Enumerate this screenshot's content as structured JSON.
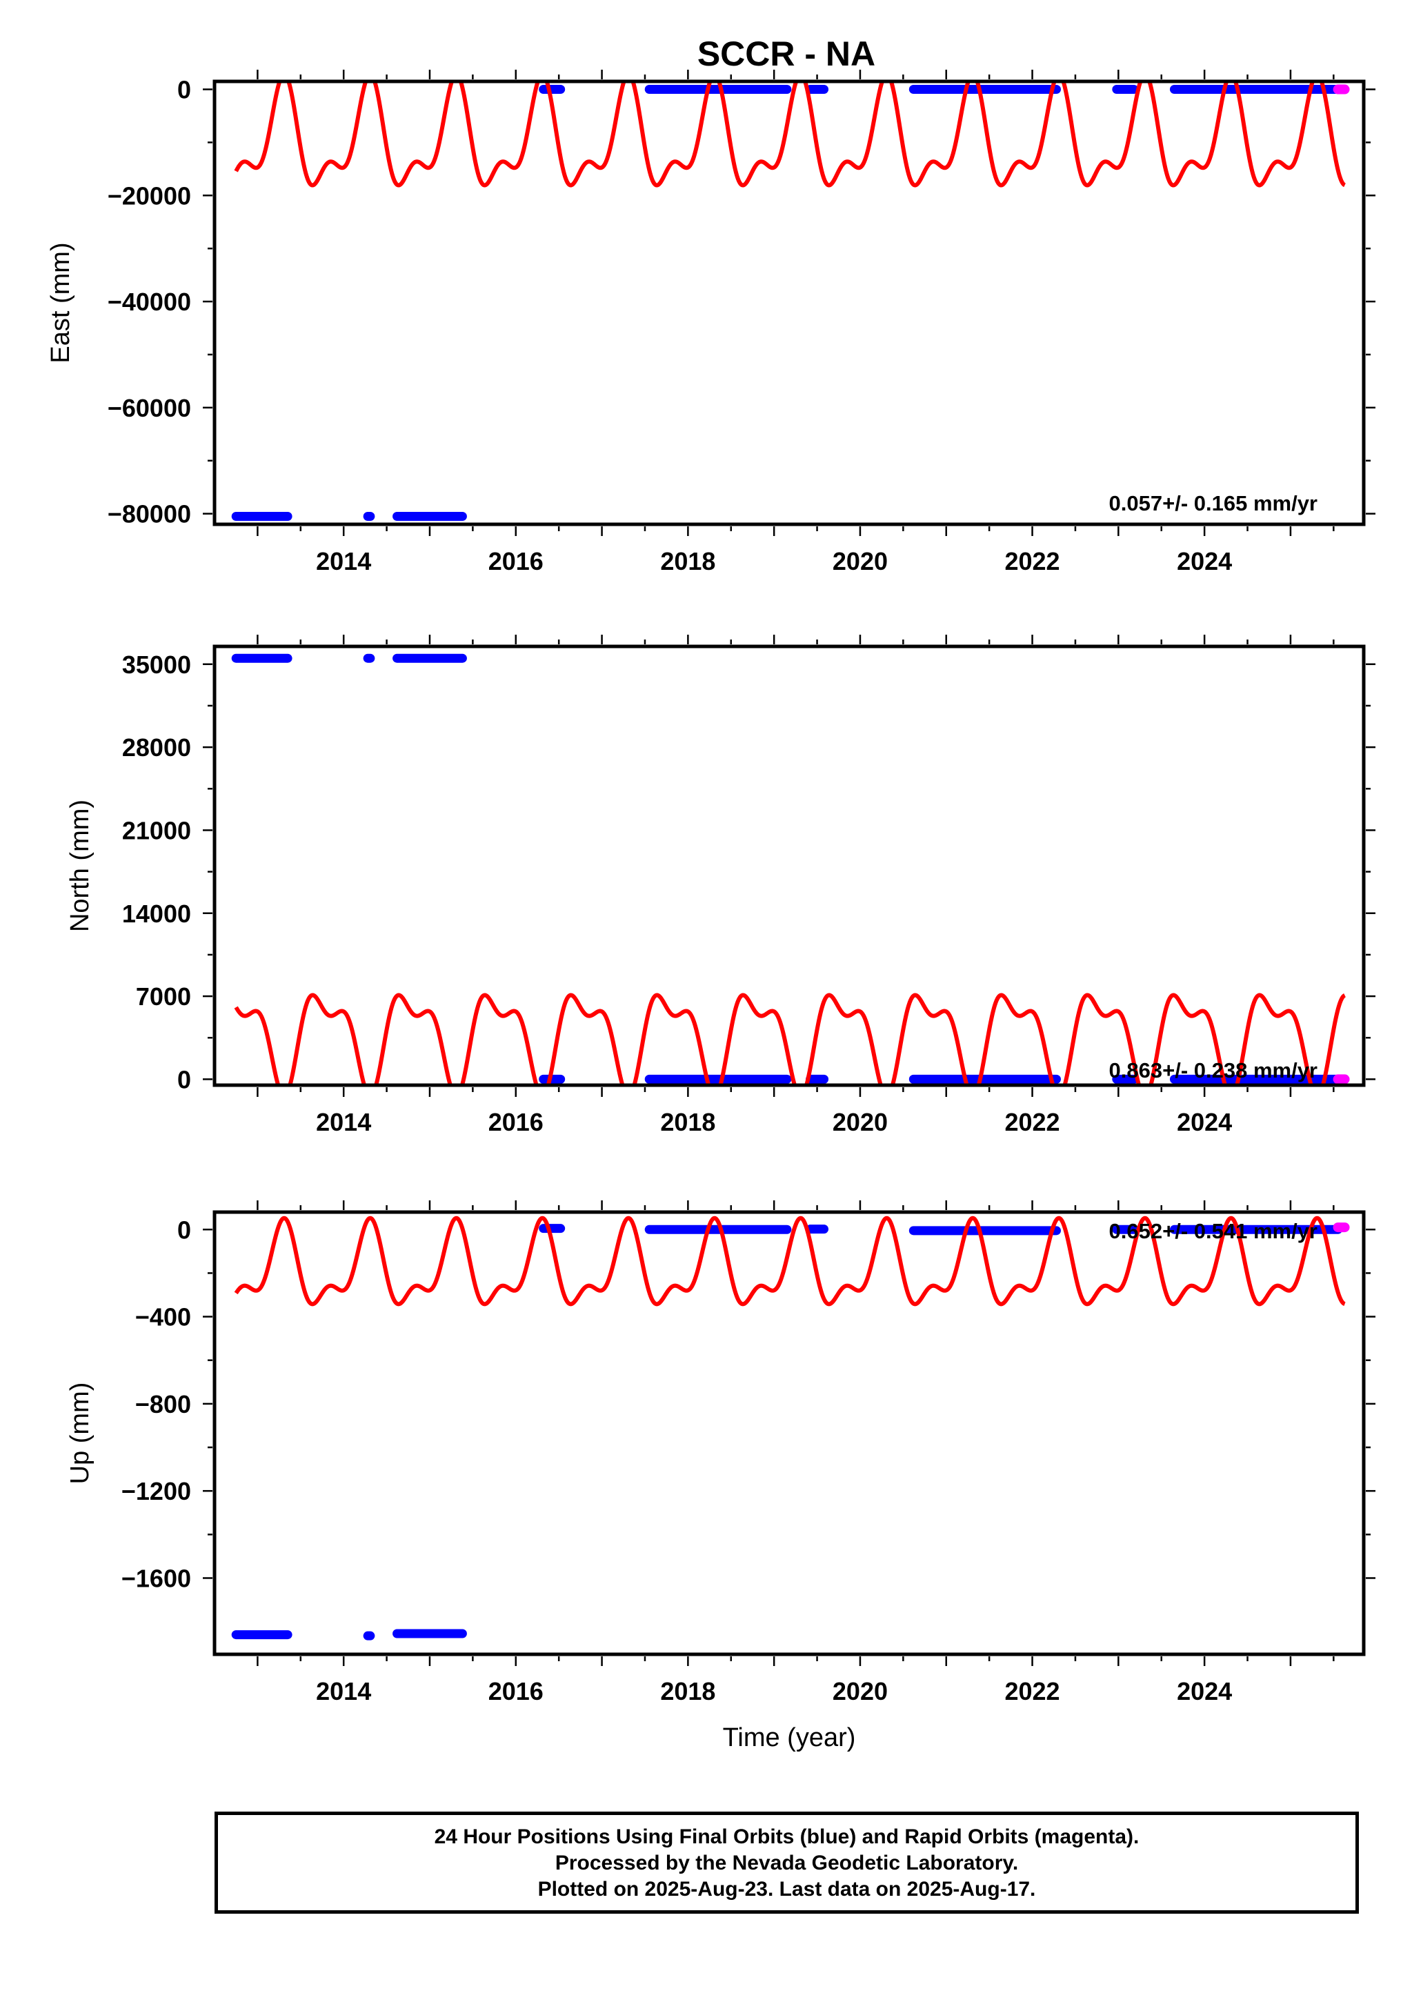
{
  "title": "SCCR - NA",
  "colors": {
    "final_orbits": "#0000ff",
    "rapid_orbits": "#ff00ff",
    "model": "#ff0000"
  },
  "footer": {
    "line1": "24 Hour Positions Using Final Orbits (blue) and Rapid Orbits (magenta).",
    "line2": "Processed by the Nevada Geodetic Laboratory.",
    "line3": "Plotted on 2025-Aug-23. Last data on 2025-Aug-17."
  },
  "chart_data": [
    {
      "type": "scatter",
      "ylabel": "East (mm)",
      "xlabel": "",
      "xlim": [
        2012.5,
        2025.85
      ],
      "ylim": [
        -82000,
        1500
      ],
      "xticks": [
        2014,
        2016,
        2018,
        2020,
        2022,
        2024
      ],
      "yticks": [
        0,
        -20000,
        -40000,
        -60000,
        -80000
      ],
      "ytick_labels": [
        "0",
        "−20000",
        "−40000",
        "−60000",
        "−80000"
      ],
      "rate_label": "0.057+/- 0.165 mm/yr",
      "final_orbit_segments": [
        {
          "x": [
            2012.75,
            2013.35
          ],
          "y": -80500
        },
        {
          "x": [
            2014.28,
            2014.31
          ],
          "y": -80500
        },
        {
          "x": [
            2014.62,
            2015.38
          ],
          "y": -80500
        },
        {
          "x": [
            2016.32,
            2016.52
          ],
          "y": 0
        },
        {
          "x": [
            2017.55,
            2019.15
          ],
          "y": 0
        },
        {
          "x": [
            2019.42,
            2019.58
          ],
          "y": 0
        },
        {
          "x": [
            2020.62,
            2022.28
          ],
          "y": 0
        },
        {
          "x": [
            2022.98,
            2023.18
          ],
          "y": 0
        },
        {
          "x": [
            2023.65,
            2025.55
          ],
          "y": 0
        }
      ],
      "rapid_orbit_segments": [
        {
          "x": [
            2025.55,
            2025.63
          ],
          "y": 0
        }
      ],
      "model": {
        "x_range": [
          2012.75,
          2025.63
        ],
        "offset": -10000,
        "a1": 8500,
        "phi1": -0.285,
        "a2": 4500,
        "phi2": 0.18
      }
    },
    {
      "type": "scatter",
      "ylabel": "North (mm)",
      "xlabel": "",
      "xlim": [
        2012.5,
        2025.85
      ],
      "ylim": [
        -500,
        36500
      ],
      "xticks": [
        2014,
        2016,
        2018,
        2020,
        2022,
        2024
      ],
      "yticks": [
        35000,
        28000,
        21000,
        14000,
        7000,
        0
      ],
      "ytick_labels": [
        "35000",
        "28000",
        "21000",
        "14000",
        "7000",
        "0"
      ],
      "rate_label": "0.863+/- 0.238 mm/yr",
      "final_orbit_segments": [
        {
          "x": [
            2012.75,
            2013.35
          ],
          "y": 35500
        },
        {
          "x": [
            2014.28,
            2014.31
          ],
          "y": 35500
        },
        {
          "x": [
            2014.62,
            2015.38
          ],
          "y": 35500
        },
        {
          "x": [
            2016.32,
            2016.52
          ],
          "y": 0
        },
        {
          "x": [
            2017.55,
            2019.15
          ],
          "y": 0
        },
        {
          "x": [
            2019.42,
            2019.58
          ],
          "y": 0
        },
        {
          "x": [
            2020.62,
            2022.28
          ],
          "y": 0
        },
        {
          "x": [
            2022.98,
            2023.18
          ],
          "y": 0
        },
        {
          "x": [
            2023.65,
            2025.55
          ],
          "y": 0
        }
      ],
      "rapid_orbit_segments": [
        {
          "x": [
            2025.55,
            2025.63
          ],
          "y": 0
        }
      ],
      "model": {
        "x_range": [
          2012.75,
          2025.63
        ],
        "offset": 3800,
        "a1": -3500,
        "phi1": -0.285,
        "a2": -1800,
        "phi2": 0.18
      }
    },
    {
      "type": "scatter",
      "ylabel": "Up (mm)",
      "xlabel": "Time (year)",
      "xlim": [
        2012.5,
        2025.85
      ],
      "ylim": [
        -1950,
        80
      ],
      "xticks": [
        2014,
        2016,
        2018,
        2020,
        2022,
        2024
      ],
      "yticks": [
        0,
        -400,
        -800,
        -1200,
        -1600
      ],
      "ytick_labels": [
        "0",
        "−400",
        "−800",
        "−1200",
        "−1600"
      ],
      "rate_label": "0.652+/- 0.541 mm/yr",
      "final_orbit_segments": [
        {
          "x": [
            2012.75,
            2013.35
          ],
          "y": -1860
        },
        {
          "x": [
            2014.28,
            2014.31
          ],
          "y": -1865
        },
        {
          "x": [
            2014.62,
            2015.38
          ],
          "y": -1855
        },
        {
          "x": [
            2016.32,
            2016.52
          ],
          "y": 5
        },
        {
          "x": [
            2017.55,
            2019.15
          ],
          "y": 0
        },
        {
          "x": [
            2019.42,
            2019.58
          ],
          "y": 2
        },
        {
          "x": [
            2020.62,
            2022.28
          ],
          "y": -5
        },
        {
          "x": [
            2022.98,
            2023.18
          ],
          "y": 0
        },
        {
          "x": [
            2023.65,
            2025.55
          ],
          "y": 0
        }
      ],
      "rapid_orbit_segments": [
        {
          "x": [
            2025.55,
            2025.63
          ],
          "y": 10
        }
      ],
      "model": {
        "x_range": [
          2012.75,
          2025.63
        ],
        "offset": -190,
        "a1": 160,
        "phi1": -0.285,
        "a2": 85,
        "phi2": 0.18
      }
    }
  ]
}
